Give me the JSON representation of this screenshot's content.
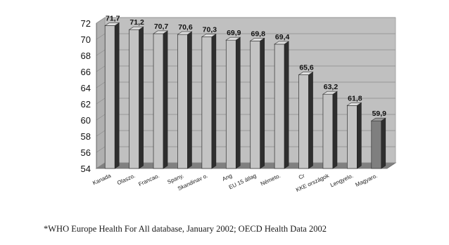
{
  "chart_data": {
    "type": "bar",
    "categories": [
      "Kanada",
      "Olaszo.",
      "Francao.",
      "Spany.",
      "Skandinav o.",
      "Ang",
      "EU 15 átlag",
      "Németo.",
      "Cr",
      "KKE országok",
      "Lengyelo.",
      "Magyaro."
    ],
    "values": [
      71.7,
      71.2,
      70.7,
      70.6,
      70.3,
      69.9,
      69.8,
      69.4,
      65.6,
      63.2,
      61.8,
      59.9
    ],
    "value_labels": [
      "71,7",
      "71,2",
      "70,7",
      "70,6",
      "70,3",
      "69,9",
      "69,8",
      "69,4",
      "65,6",
      "63,2",
      "61,8",
      "59,9"
    ],
    "title": "",
    "xlabel": "",
    "ylabel": "",
    "ylim": [
      54,
      72
    ],
    "yticks": [
      54,
      56,
      58,
      60,
      62,
      64,
      66,
      68,
      70,
      72
    ],
    "grid": false,
    "legend": "none",
    "style": "3d-bar",
    "colors": {
      "bar": "#c4c4c4",
      "bar_highlight": "#7f7f7f",
      "wall": "#c0c0c0",
      "floor": "#808080",
      "highlight_label": "#aaaaaa"
    },
    "highlight_index": 11
  },
  "footnote": "*WHO Europe Health For All database, January 2002; OECD Health Data 2002"
}
